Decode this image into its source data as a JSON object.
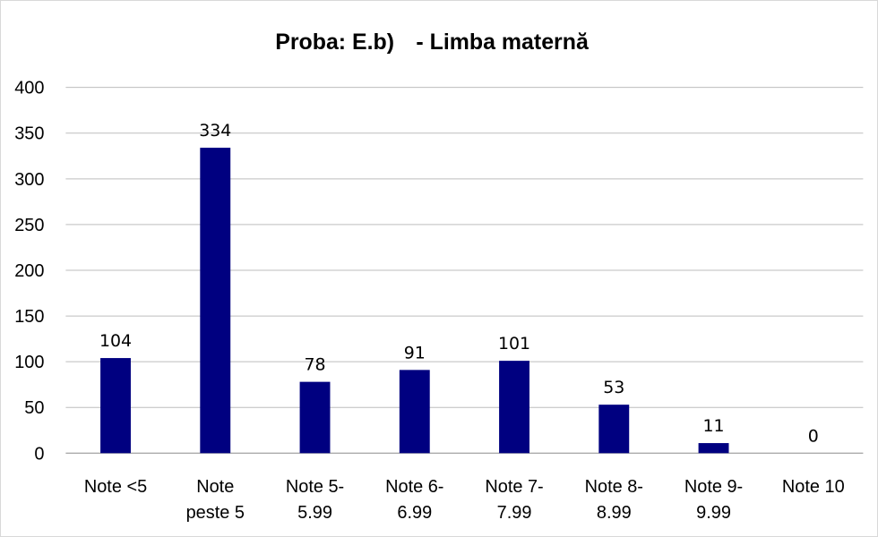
{
  "chart_data": {
    "type": "bar",
    "title_parts": [
      "Proba: E.b)",
      "- Limba maternă"
    ],
    "categories": [
      [
        "Note <5"
      ],
      [
        "Note",
        "peste 5"
      ],
      [
        "Note 5-",
        "5.99"
      ],
      [
        "Note 6-",
        "6.99"
      ],
      [
        "Note 7-",
        "7.99"
      ],
      [
        "Note 8-",
        "8.99"
      ],
      [
        "Note 9-",
        "9.99"
      ],
      [
        "Note 10"
      ]
    ],
    "values": [
      104,
      334,
      78,
      91,
      101,
      53,
      11,
      0
    ],
    "yticks": [
      0,
      50,
      100,
      150,
      200,
      250,
      300,
      350,
      400
    ],
    "ylim": [
      0,
      400
    ],
    "grid": true,
    "legend": "none",
    "bar_color": "#000080",
    "xlabel": "",
    "ylabel": ""
  }
}
